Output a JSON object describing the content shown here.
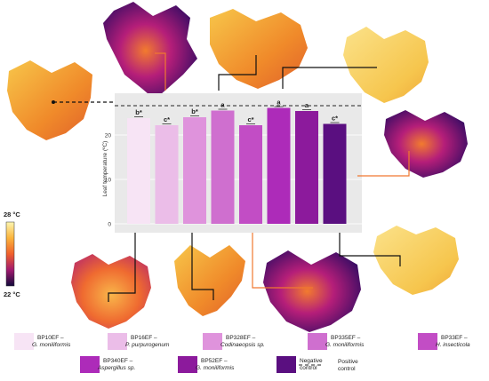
{
  "chart_data": {
    "type": "bar",
    "ylabel": "Leaf temperature (ºC)",
    "ylim": [
      0,
      28
    ],
    "yticks": [
      "0",
      "10",
      "20"
    ],
    "positive_control_value": 26.6,
    "series": [
      {
        "code": "BP10EF –",
        "species": "G. moniliformis",
        "value": 23.8,
        "sig": "b*",
        "color": "#f7e4f5"
      },
      {
        "code": "BP16EF –",
        "species": "P. purpurogenum",
        "value": 22.2,
        "sig": "c*",
        "color": "#ebbde8"
      },
      {
        "code": "BP328EF –",
        "species": "Codinaeopsis sp.",
        "value": 24.0,
        "sig": "b*",
        "color": "#df93dc"
      },
      {
        "code": "BP335EF –",
        "species": "G. moniliformis",
        "value": 25.5,
        "sig": "a",
        "color": "#cf6fcf"
      },
      {
        "code": "BP33EF –",
        "species": "H. insecticola",
        "value": 22.2,
        "sig": "c*",
        "color": "#c24dc5"
      },
      {
        "code": "BP340EF –",
        "species": "Aspergillus sp.",
        "value": 26.1,
        "sig": "a",
        "color": "#ad2bb9"
      },
      {
        "code": "BP52EF –",
        "species": "G. moniliformis",
        "value": 25.4,
        "sig": "a",
        "color": "#8c1a9c"
      },
      {
        "code": "",
        "species": "",
        "label": "Negative control",
        "value": 22.5,
        "sig": "c*",
        "color": "#5a0f80"
      }
    ],
    "positive_control_label": "Positive control",
    "colorscale": {
      "max_label": "28 °C",
      "min_label": "22 °C"
    }
  }
}
